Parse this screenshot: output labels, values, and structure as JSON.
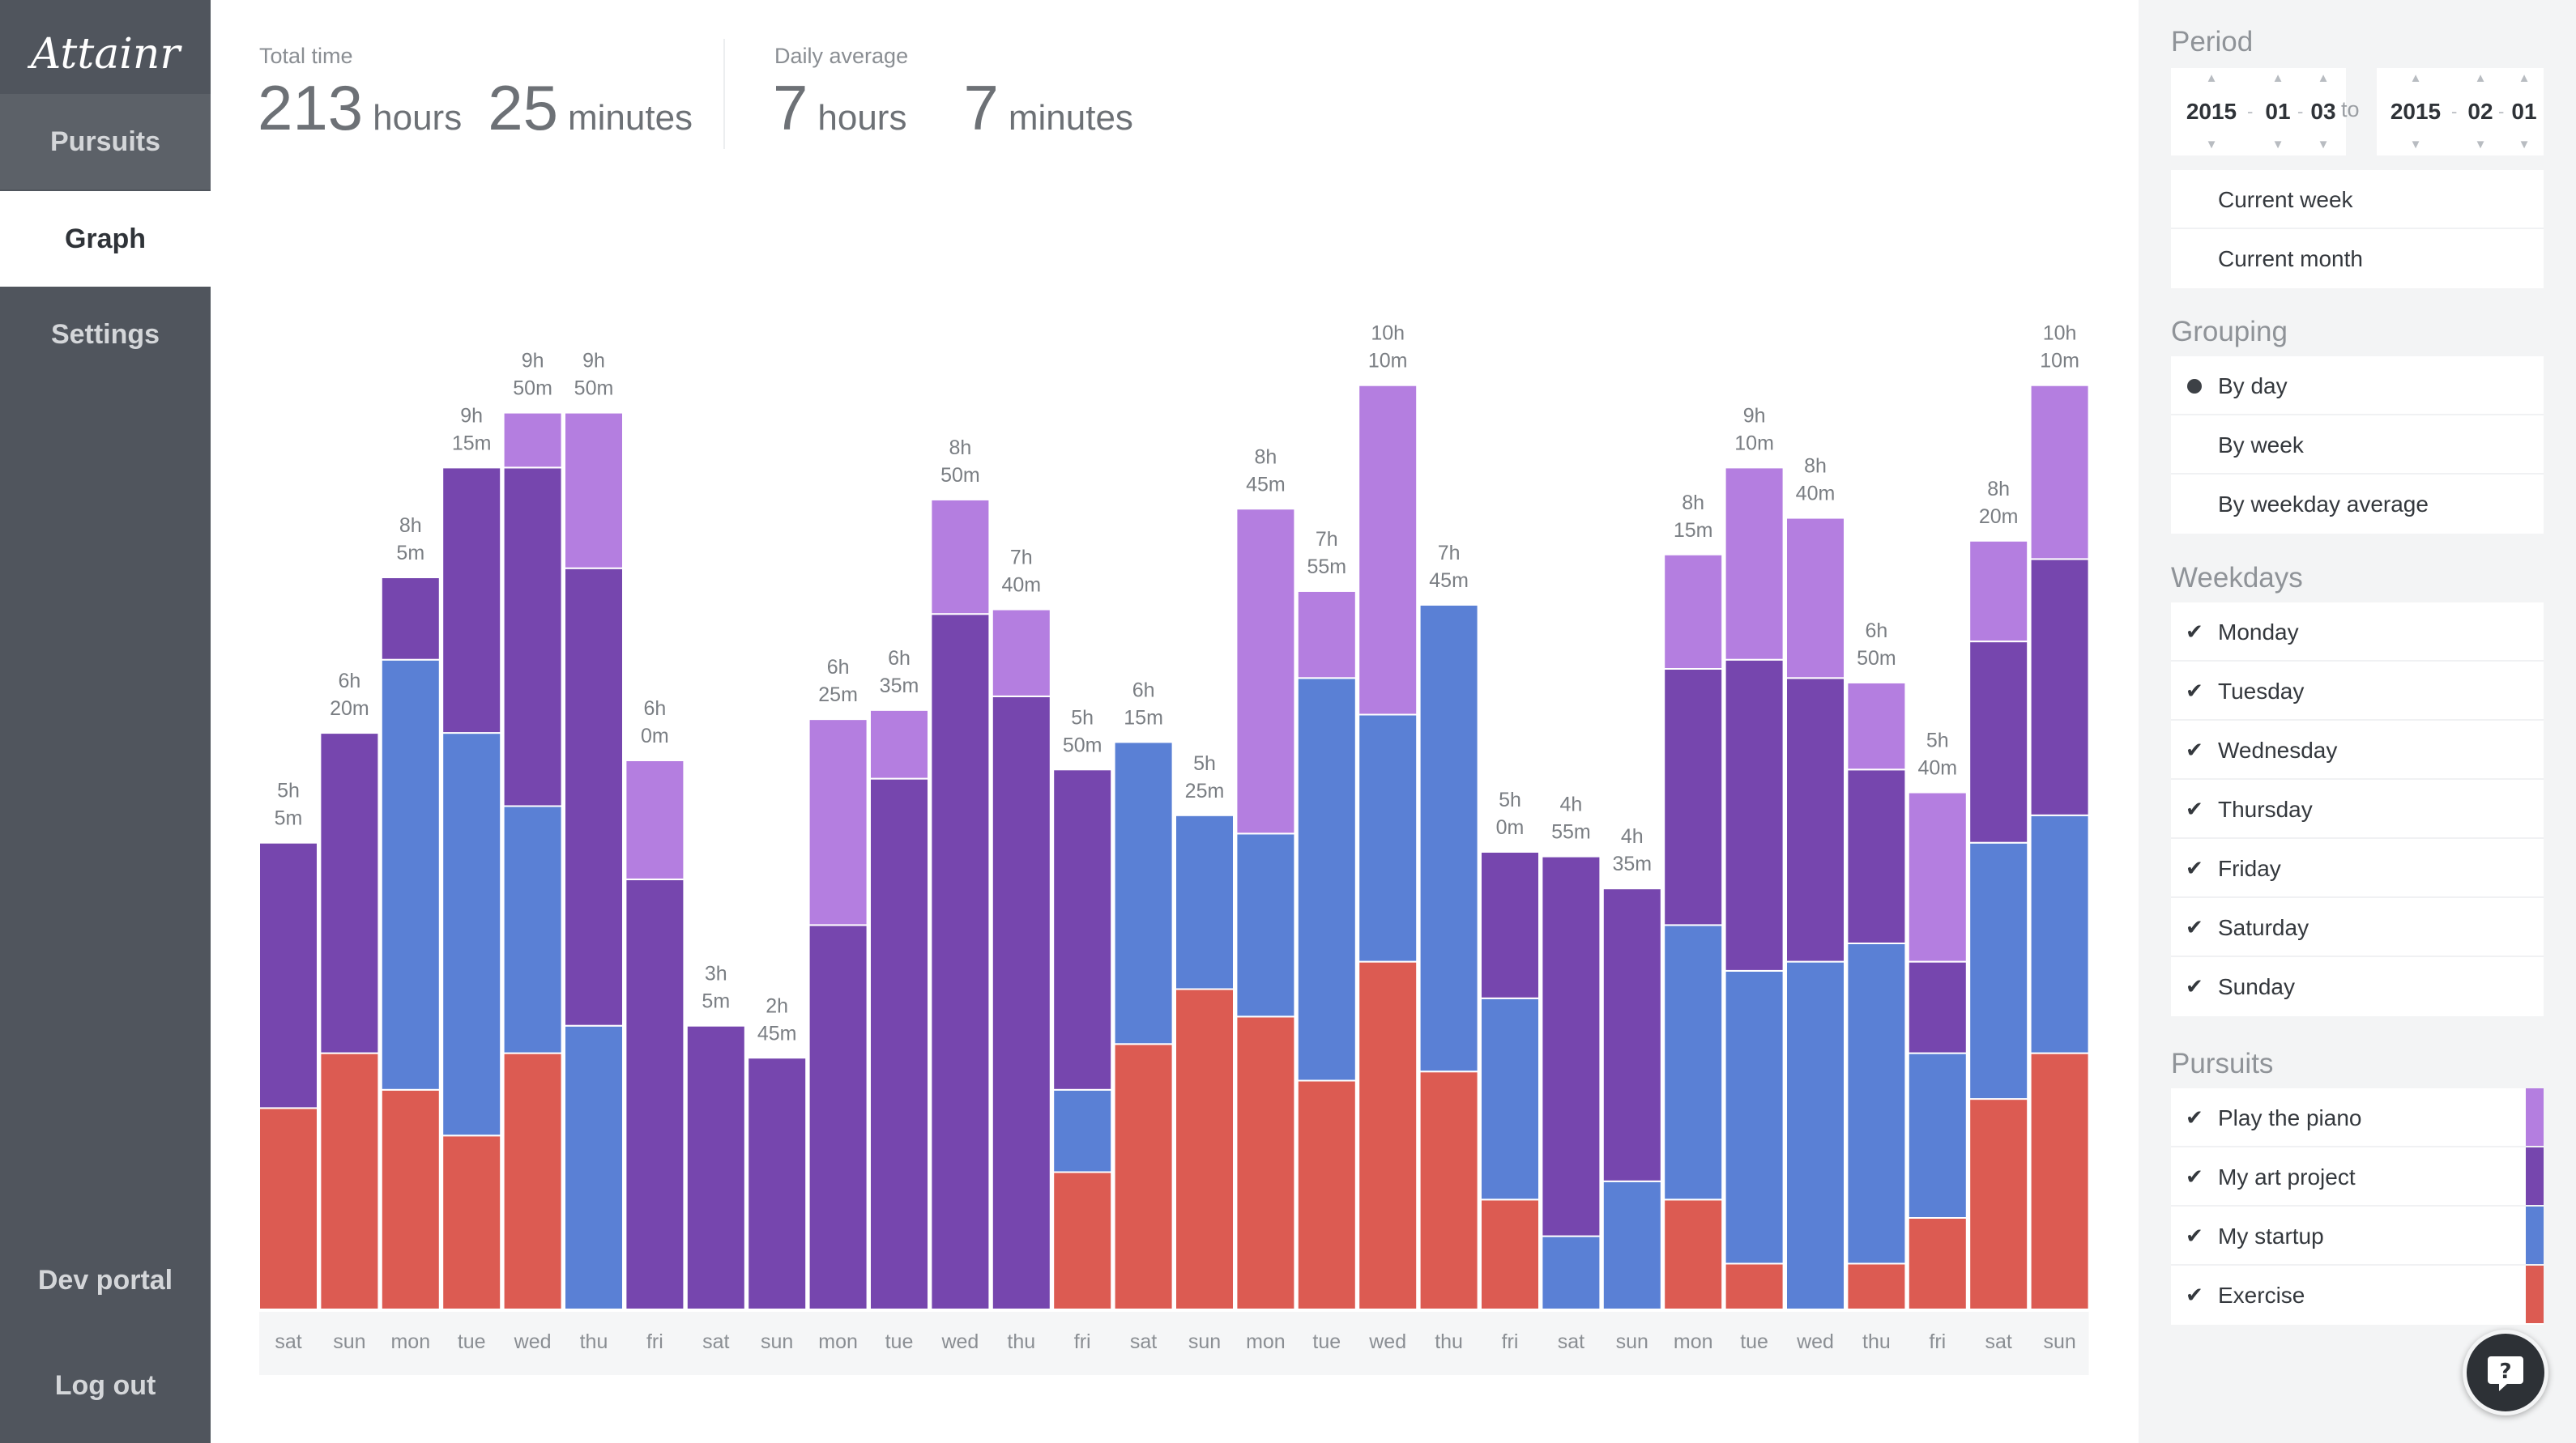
{
  "app": {
    "logo_text": "Attainr"
  },
  "nav": {
    "pursuits": "Pursuits",
    "graph": "Graph",
    "settings": "Settings",
    "dev_portal": "Dev portal",
    "log_out": "Log out"
  },
  "stats": {
    "total_label": "Total time",
    "total_hours": "213",
    "total_hours_unit": "hours",
    "total_minutes": "25",
    "total_minutes_unit": "minutes",
    "avg_label": "Daily average",
    "avg_hours": "7",
    "avg_hours_unit": "hours",
    "avg_minutes": "7",
    "avg_minutes_unit": "minutes"
  },
  "period": {
    "title": "Period",
    "from": {
      "year": "2015",
      "month": "01",
      "day": "03"
    },
    "to_label": "to",
    "to": {
      "year": "2015",
      "month": "02",
      "day": "01"
    },
    "presets": [
      "Current week",
      "Current month"
    ]
  },
  "grouping": {
    "title": "Grouping",
    "options": [
      "By day",
      "By week",
      "By weekday average"
    ],
    "selected": 0
  },
  "weekdays": {
    "title": "Weekdays",
    "items": [
      "Monday",
      "Tuesday",
      "Wednesday",
      "Thursday",
      "Friday",
      "Saturday",
      "Sunday"
    ]
  },
  "pursuits": {
    "title": "Pursuits",
    "items": [
      {
        "name": "Play the piano",
        "color": "#b47ee0"
      },
      {
        "name": "My art project",
        "color": "#7646ae"
      },
      {
        "name": "My startup",
        "color": "#5a80d5"
      },
      {
        "name": "Exercise",
        "color": "#dc5b52"
      }
    ]
  },
  "chart_data": {
    "type": "bar",
    "stacked": true,
    "categories": [
      "sat",
      "sun",
      "mon",
      "tue",
      "wed",
      "thu",
      "fri",
      "sat",
      "sun",
      "mon",
      "tue",
      "wed",
      "thu",
      "fri",
      "sat",
      "sun",
      "mon",
      "tue",
      "wed",
      "thu",
      "fri",
      "sat",
      "sun",
      "mon",
      "tue",
      "wed",
      "thu",
      "fri",
      "sat",
      "sun"
    ],
    "totals": [
      "5h 5m",
      "6h 20m",
      "8h 5m",
      "9h 15m",
      "9h 50m",
      "9h 50m",
      "6h 0m",
      "3h 5m",
      "2h 45m",
      "6h 25m",
      "6h 35m",
      "8h 50m",
      "7h 40m",
      "5h 50m",
      "6h 15m",
      "5h 25m",
      "8h 45m",
      "7h 55m",
      "10h 10m",
      "7h 45m",
      "5h 0m",
      "4h 55m",
      "4h 35m",
      "8h 15m",
      "9h 10m",
      "8h 40m",
      "6h 50m",
      "5h 40m",
      "8h 20m",
      "10h 10m"
    ],
    "series": [
      {
        "name": "Exercise",
        "color": "#dc5b52",
        "values": [
          2.2,
          2.8,
          2.4,
          1.9,
          2.8,
          0,
          0,
          0,
          0,
          0,
          0,
          0,
          0,
          1.5,
          2.9,
          3.5,
          3.2,
          2.5,
          3.8,
          2.6,
          1.2,
          0,
          0,
          1.2,
          0.5,
          0,
          0.5,
          1,
          2.3,
          2.8
        ]
      },
      {
        "name": "My startup",
        "color": "#5a80d5",
        "values": [
          0,
          0,
          4.7,
          4.4,
          2.7,
          3.1,
          0,
          0,
          0,
          0,
          0,
          0,
          0,
          0.9,
          3.3,
          1.9,
          2,
          4.4,
          2.7,
          5.1,
          2.2,
          0.8,
          1.4,
          3,
          3.2,
          3.8,
          3.5,
          1.8,
          2.8,
          2.6
        ]
      },
      {
        "name": "My art project",
        "color": "#7646ae",
        "values": [
          2.9,
          3.5,
          0.9,
          2.9,
          3.7,
          5,
          4.7,
          3.1,
          2.75,
          4.2,
          5.8,
          7.6,
          6.7,
          3.5,
          0,
          0,
          0,
          0,
          0,
          0,
          1.6,
          4.15,
          3.2,
          2.8,
          3.4,
          3.1,
          1.9,
          1,
          2.2,
          2.8
        ]
      },
      {
        "name": "Play the piano",
        "color": "#b47ee0",
        "values": [
          0,
          0,
          0,
          0,
          0.6,
          1.7,
          1.3,
          0,
          0,
          2.25,
          0.75,
          1.25,
          0.95,
          0,
          0,
          0,
          3.55,
          0.95,
          3.6,
          0,
          0,
          0,
          0,
          1.25,
          2.1,
          1.75,
          0.95,
          1.85,
          1.1,
          1.9
        ]
      }
    ],
    "ylim": [
      0,
      10.5
    ]
  }
}
